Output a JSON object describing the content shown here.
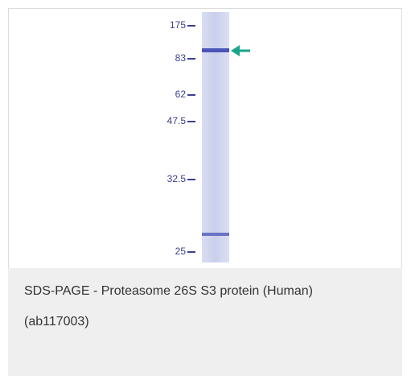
{
  "figure": {
    "markers": [
      "175",
      "83",
      "62",
      "47.5",
      "32.5",
      "25"
    ]
  },
  "caption": [
    "SDS-PAGE - Proteasome 26S S3 protein (Human)",
    "(ab117003)"
  ]
}
